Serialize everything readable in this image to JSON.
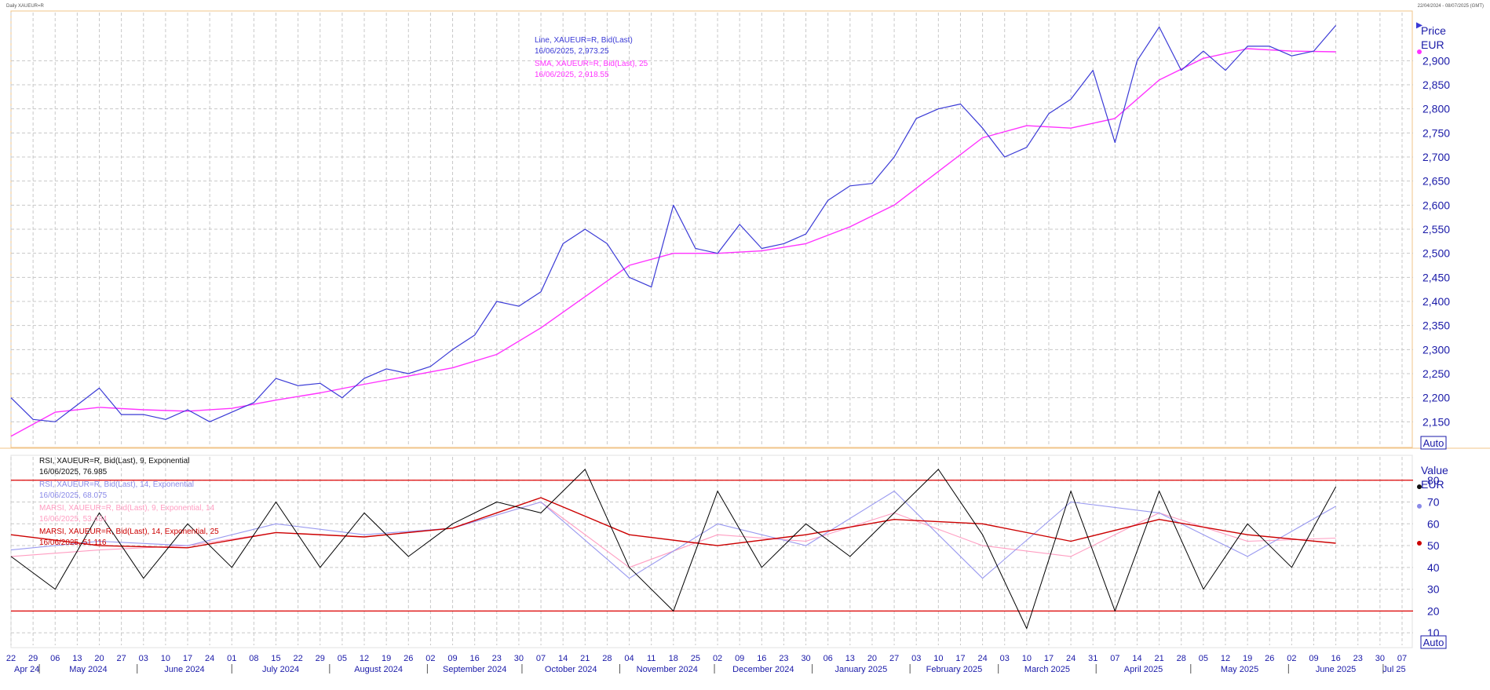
{
  "window": {
    "title": "Daily XAUEUR=R",
    "date_range": "22/04/2024 - 08/07/2025 (GMT)",
    "auto_label_top": "Auto",
    "auto_label_bottom": "Auto"
  },
  "colors": {
    "price_line": "#3a3ad6",
    "sma_line": "#ff33ff",
    "rsi9": "#000000",
    "rsi14": "#9a9af0",
    "marsi9": "#ff9ec2",
    "marsi14": "#cc0000",
    "ob_os_lines": "#dd0000",
    "grid": "#c8c8c8"
  },
  "chart_data": [
    {
      "type": "line",
      "title": "",
      "ylabel": "Price",
      "yunit": "EUR",
      "ylim": [
        2100,
        3000
      ],
      "yticks": [
        2150,
        2200,
        2250,
        2300,
        2350,
        2400,
        2450,
        2500,
        2550,
        2600,
        2650,
        2700,
        2750,
        2800,
        2850,
        2900
      ],
      "ytick_labels": [
        "2,150",
        "2,200",
        "2,250",
        "2,300",
        "2,350",
        "2,400",
        "2,450",
        "2,500",
        "2,550",
        "2,600",
        "2,650",
        "2,700",
        "2,750",
        "2,800",
        "2,850",
        "2,900"
      ],
      "grid": true,
      "legend": [
        {
          "line1": "Line, XAUEUR=R, Bid(Last)",
          "line2": "16/06/2025, 2,973.25"
        },
        {
          "line1": "SMA, XAUEUR=R, Bid(Last),  25",
          "line2": "16/06/2025, 2,918.55"
        }
      ],
      "series": [
        {
          "name": "Line, XAUEUR=R, Bid(Last)",
          "x": [
            "2024-04-22",
            "2024-04-29",
            "2024-05-06",
            "2024-05-13",
            "2024-05-20",
            "2024-05-27",
            "2024-06-03",
            "2024-06-10",
            "2024-06-17",
            "2024-06-24",
            "2024-07-01",
            "2024-07-08",
            "2024-07-15",
            "2024-07-22",
            "2024-07-29",
            "2024-08-05",
            "2024-08-12",
            "2024-08-19",
            "2024-08-26",
            "2024-09-02",
            "2024-09-09",
            "2024-09-16",
            "2024-09-23",
            "2024-09-30",
            "2024-10-07",
            "2024-10-14",
            "2024-10-21",
            "2024-10-28",
            "2024-11-04",
            "2024-11-11",
            "2024-11-18",
            "2024-11-25",
            "2024-12-02",
            "2024-12-09",
            "2024-12-16",
            "2024-12-23",
            "2024-12-30",
            "2025-01-06",
            "2025-01-13",
            "2025-01-20",
            "2025-01-27",
            "2025-02-03",
            "2025-02-10",
            "2025-02-17",
            "2025-02-24",
            "2025-03-03",
            "2025-03-10",
            "2025-03-17",
            "2025-03-24",
            "2025-03-31",
            "2025-04-07",
            "2025-04-14",
            "2025-04-21",
            "2025-04-28",
            "2025-05-05",
            "2025-05-12",
            "2025-05-19",
            "2025-05-26",
            "2025-06-02",
            "2025-06-09",
            "2025-06-16"
          ],
          "values": [
            2200,
            2155,
            2150,
            2185,
            2220,
            2165,
            2165,
            2155,
            2175,
            2150,
            2170,
            2190,
            2240,
            2225,
            2230,
            2200,
            2240,
            2260,
            2250,
            2265,
            2300,
            2330,
            2400,
            2390,
            2420,
            2520,
            2550,
            2520,
            2450,
            2430,
            2600,
            2510,
            2500,
            2560,
            2510,
            2520,
            2540,
            2610,
            2640,
            2645,
            2700,
            2780,
            2800,
            2810,
            2760,
            2700,
            2720,
            2790,
            2820,
            2880,
            2730,
            2900,
            2970,
            2880,
            2920,
            2880,
            2930,
            2930,
            2910,
            2920,
            2973.25
          ]
        },
        {
          "name": "SMA, XAUEUR=R, Bid(Last),  25",
          "x": [
            "2024-04-22",
            "2024-05-06",
            "2024-05-20",
            "2024-06-03",
            "2024-06-17",
            "2024-07-01",
            "2024-07-15",
            "2024-07-29",
            "2024-08-12",
            "2024-08-26",
            "2024-09-09",
            "2024-09-23",
            "2024-10-07",
            "2024-10-21",
            "2024-11-04",
            "2024-11-18",
            "2024-12-02",
            "2024-12-16",
            "2024-12-30",
            "2025-01-13",
            "2025-01-27",
            "2025-02-10",
            "2025-02-24",
            "2025-03-10",
            "2025-03-24",
            "2025-04-07",
            "2025-04-21",
            "2025-05-05",
            "2025-05-19",
            "2025-06-02",
            "2025-06-16"
          ],
          "values": [
            2120,
            2170,
            2180,
            2175,
            2172,
            2178,
            2195,
            2210,
            2228,
            2245,
            2262,
            2290,
            2345,
            2410,
            2475,
            2500,
            2500,
            2505,
            2520,
            2555,
            2600,
            2670,
            2740,
            2765,
            2760,
            2780,
            2860,
            2905,
            2925,
            2920,
            2918.55
          ]
        }
      ]
    },
    {
      "type": "line",
      "title": "",
      "ylabel": "Value",
      "yunit": "EUR",
      "ylim": [
        5,
        90
      ],
      "yticks": [
        10,
        20,
        30,
        40,
        50,
        60,
        70,
        80
      ],
      "ytick_labels": [
        "10",
        "20",
        "30",
        "40",
        "50",
        "60",
        "70",
        "80"
      ],
      "hlines": [
        80,
        20
      ],
      "grid": true,
      "legend": [
        {
          "line1": "RSI, XAUEUR=R, Bid(Last),  9, Exponential",
          "line2": "16/06/2025, 76.985"
        },
        {
          "line1": "RSI, XAUEUR=R, Bid(Last),  14, Exponential",
          "line2": "16/06/2025, 68.075"
        },
        {
          "line1": "MARSI, XAUEUR=R, Bid(Last),  9, Exponential, 14",
          "line2": "16/06/2025, 53.434"
        },
        {
          "line1": "MARSI, XAUEUR=R, Bid(Last),  14, Exponential, 25",
          "line2": "16/06/2025, 51.116"
        }
      ],
      "series": [
        {
          "name": "RSI, XAUEUR=R, Bid(Last),  9, Exponential",
          "x": [
            "2024-04-22",
            "2024-05-06",
            "2024-05-20",
            "2024-06-03",
            "2024-06-17",
            "2024-07-01",
            "2024-07-15",
            "2024-07-29",
            "2024-08-12",
            "2024-08-26",
            "2024-09-09",
            "2024-09-23",
            "2024-10-07",
            "2024-10-21",
            "2024-11-04",
            "2024-11-18",
            "2024-12-02",
            "2024-12-16",
            "2024-12-30",
            "2025-01-13",
            "2025-01-27",
            "2025-02-10",
            "2025-02-24",
            "2025-03-10",
            "2025-03-24",
            "2025-04-07",
            "2025-04-21",
            "2025-05-05",
            "2025-05-19",
            "2025-06-02",
            "2025-06-16"
          ],
          "values": [
            45,
            30,
            65,
            35,
            60,
            40,
            70,
            40,
            65,
            45,
            60,
            70,
            65,
            85,
            40,
            20,
            75,
            40,
            60,
            45,
            65,
            85,
            55,
            12,
            75,
            20,
            75,
            30,
            60,
            40,
            76.985
          ]
        },
        {
          "name": "RSI, XAUEUR=R, Bid(Last),  14, Exponential",
          "x": [
            "2024-04-22",
            "2024-05-20",
            "2024-06-17",
            "2024-07-15",
            "2024-08-12",
            "2024-09-09",
            "2024-10-07",
            "2024-11-04",
            "2024-12-02",
            "2024-12-30",
            "2025-01-27",
            "2025-02-24",
            "2025-03-24",
            "2025-04-21",
            "2025-05-19",
            "2025-06-16"
          ],
          "values": [
            48,
            52,
            50,
            60,
            55,
            58,
            70,
            35,
            60,
            50,
            75,
            35,
            70,
            65,
            45,
            68.075
          ]
        },
        {
          "name": "MARSI, XAUEUR=R, Bid(Last),  9, Exponential, 14",
          "x": [
            "2024-04-22",
            "2024-05-20",
            "2024-06-17",
            "2024-07-15",
            "2024-08-12",
            "2024-09-09",
            "2024-10-07",
            "2024-11-04",
            "2024-12-02",
            "2024-12-30",
            "2025-01-27",
            "2025-02-24",
            "2025-03-24",
            "2025-04-21",
            "2025-05-19",
            "2025-06-16"
          ],
          "values": [
            45,
            48,
            50,
            56,
            54,
            58,
            70,
            40,
            55,
            52,
            65,
            50,
            45,
            65,
            52,
            53.434
          ]
        },
        {
          "name": "MARSI, XAUEUR=R, Bid(Last),  14, Exponential, 25",
          "x": [
            "2024-04-22",
            "2024-05-20",
            "2024-06-17",
            "2024-07-15",
            "2024-08-12",
            "2024-09-09",
            "2024-10-07",
            "2024-11-04",
            "2024-12-02",
            "2024-12-30",
            "2025-01-27",
            "2025-02-24",
            "2025-03-24",
            "2025-04-21",
            "2025-05-19",
            "2025-06-16"
          ],
          "values": [
            55,
            50,
            49,
            56,
            54,
            58,
            72,
            55,
            50,
            55,
            62,
            60,
            52,
            62,
            55,
            51.116
          ]
        }
      ]
    }
  ],
  "x_axis": {
    "day_ticks": [
      {
        "date": "2024-04-22",
        "label": "22"
      },
      {
        "date": "2024-04-29",
        "label": "29"
      },
      {
        "date": "2024-05-06",
        "label": "06"
      },
      {
        "date": "2024-05-13",
        "label": "13"
      },
      {
        "date": "2024-05-20",
        "label": "20"
      },
      {
        "date": "2024-05-27",
        "label": "27"
      },
      {
        "date": "2024-06-03",
        "label": "03"
      },
      {
        "date": "2024-06-10",
        "label": "10"
      },
      {
        "date": "2024-06-17",
        "label": "17"
      },
      {
        "date": "2024-06-24",
        "label": "24"
      },
      {
        "date": "2024-07-01",
        "label": "01"
      },
      {
        "date": "2024-07-08",
        "label": "08"
      },
      {
        "date": "2024-07-15",
        "label": "15"
      },
      {
        "date": "2024-07-22",
        "label": "22"
      },
      {
        "date": "2024-07-29",
        "label": "29"
      },
      {
        "date": "2024-08-05",
        "label": "05"
      },
      {
        "date": "2024-08-12",
        "label": "12"
      },
      {
        "date": "2024-08-19",
        "label": "19"
      },
      {
        "date": "2024-08-26",
        "label": "26"
      },
      {
        "date": "2024-09-02",
        "label": "02"
      },
      {
        "date": "2024-09-09",
        "label": "09"
      },
      {
        "date": "2024-09-16",
        "label": "16"
      },
      {
        "date": "2024-09-23",
        "label": "23"
      },
      {
        "date": "2024-09-30",
        "label": "30"
      },
      {
        "date": "2024-10-07",
        "label": "07"
      },
      {
        "date": "2024-10-14",
        "label": "14"
      },
      {
        "date": "2024-10-21",
        "label": "21"
      },
      {
        "date": "2024-10-28",
        "label": "28"
      },
      {
        "date": "2024-11-04",
        "label": "04"
      },
      {
        "date": "2024-11-11",
        "label": "11"
      },
      {
        "date": "2024-11-18",
        "label": "18"
      },
      {
        "date": "2024-11-25",
        "label": "25"
      },
      {
        "date": "2024-12-02",
        "label": "02"
      },
      {
        "date": "2024-12-09",
        "label": "09"
      },
      {
        "date": "2024-12-16",
        "label": "16"
      },
      {
        "date": "2024-12-23",
        "label": "23"
      },
      {
        "date": "2024-12-30",
        "label": "30"
      },
      {
        "date": "2025-01-06",
        "label": "06"
      },
      {
        "date": "2025-01-13",
        "label": "13"
      },
      {
        "date": "2025-01-20",
        "label": "20"
      },
      {
        "date": "2025-01-27",
        "label": "27"
      },
      {
        "date": "2025-02-03",
        "label": "03"
      },
      {
        "date": "2025-02-10",
        "label": "10"
      },
      {
        "date": "2025-02-17",
        "label": "17"
      },
      {
        "date": "2025-02-24",
        "label": "24"
      },
      {
        "date": "2025-03-03",
        "label": "03"
      },
      {
        "date": "2025-03-10",
        "label": "10"
      },
      {
        "date": "2025-03-17",
        "label": "17"
      },
      {
        "date": "2025-03-24",
        "label": "24"
      },
      {
        "date": "2025-03-31",
        "label": "31"
      },
      {
        "date": "2025-04-07",
        "label": "07"
      },
      {
        "date": "2025-04-14",
        "label": "14"
      },
      {
        "date": "2025-04-21",
        "label": "21"
      },
      {
        "date": "2025-04-28",
        "label": "28"
      },
      {
        "date": "2025-05-05",
        "label": "05"
      },
      {
        "date": "2025-05-12",
        "label": "12"
      },
      {
        "date": "2025-05-19",
        "label": "19"
      },
      {
        "date": "2025-05-26",
        "label": "26"
      },
      {
        "date": "2025-06-02",
        "label": "02"
      },
      {
        "date": "2025-06-09",
        "label": "09"
      },
      {
        "date": "2025-06-16",
        "label": "16"
      },
      {
        "date": "2025-06-23",
        "label": "23"
      },
      {
        "date": "2025-06-30",
        "label": "30"
      },
      {
        "date": "2025-07-07",
        "label": "07"
      }
    ],
    "month_labels": [
      "Apr 24",
      "May 2024",
      "June 2024",
      "July 2024",
      "August 2024",
      "September 2024",
      "October 2024",
      "November 2024",
      "December 2024",
      "January 2025",
      "February 2025",
      "March 2025",
      "April 2025",
      "May 2025",
      "June 2025",
      "Jul 25"
    ],
    "domain": [
      "2024-04-22",
      "2025-07-07"
    ]
  }
}
